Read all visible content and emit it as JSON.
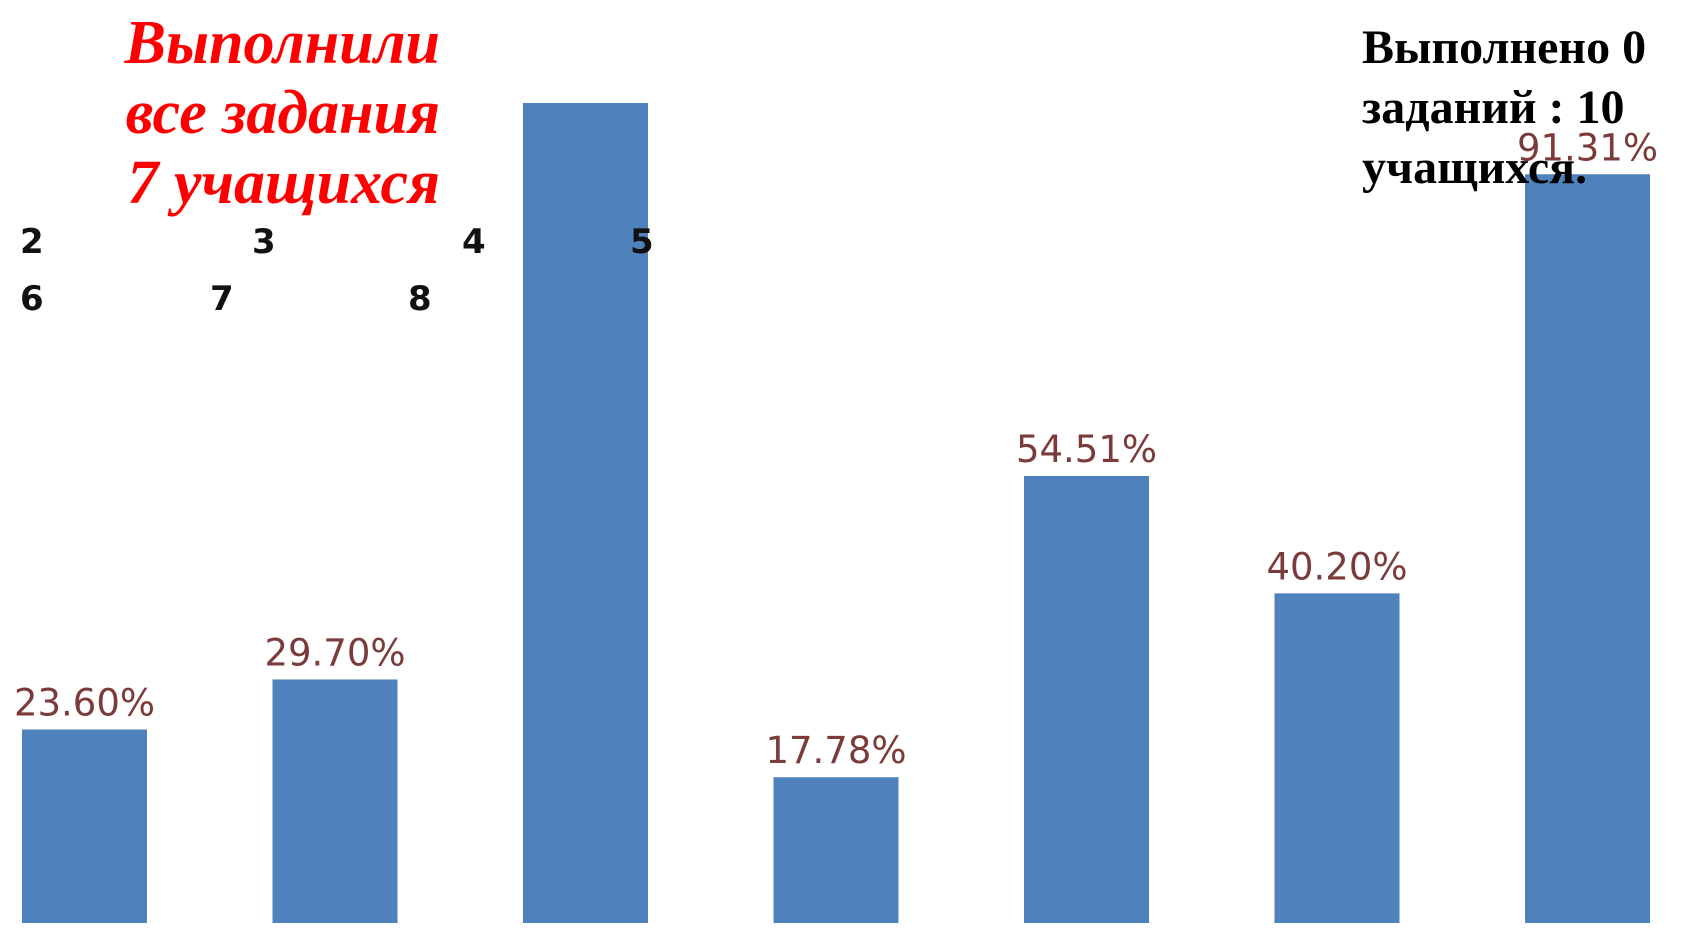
{
  "chart_data": {
    "type": "bar",
    "values": [
      23.6,
      29.7,
      100,
      17.78,
      54.51,
      40.2,
      91.31
    ],
    "labels": [
      "23.60%",
      "29.70%",
      "",
      "17.78%",
      "54.51%",
      "40.20%",
      "91.31%"
    ],
    "ylim": [
      0,
      100
    ],
    "bar_color": "#4f81bd",
    "label_color": "#7b3b3b"
  },
  "header_digits": [
    "2",
    "3",
    "4",
    "5",
    "6",
    "7",
    "8"
  ],
  "red_note": {
    "line1": "Выполнили",
    "line2": "все задания",
    "line3": "7 учащихся",
    "color": "#ff0000"
  },
  "black_note": {
    "line1": "Выполнено 0",
    "line2": "заданий  : 10",
    "line3": "учащихся."
  }
}
